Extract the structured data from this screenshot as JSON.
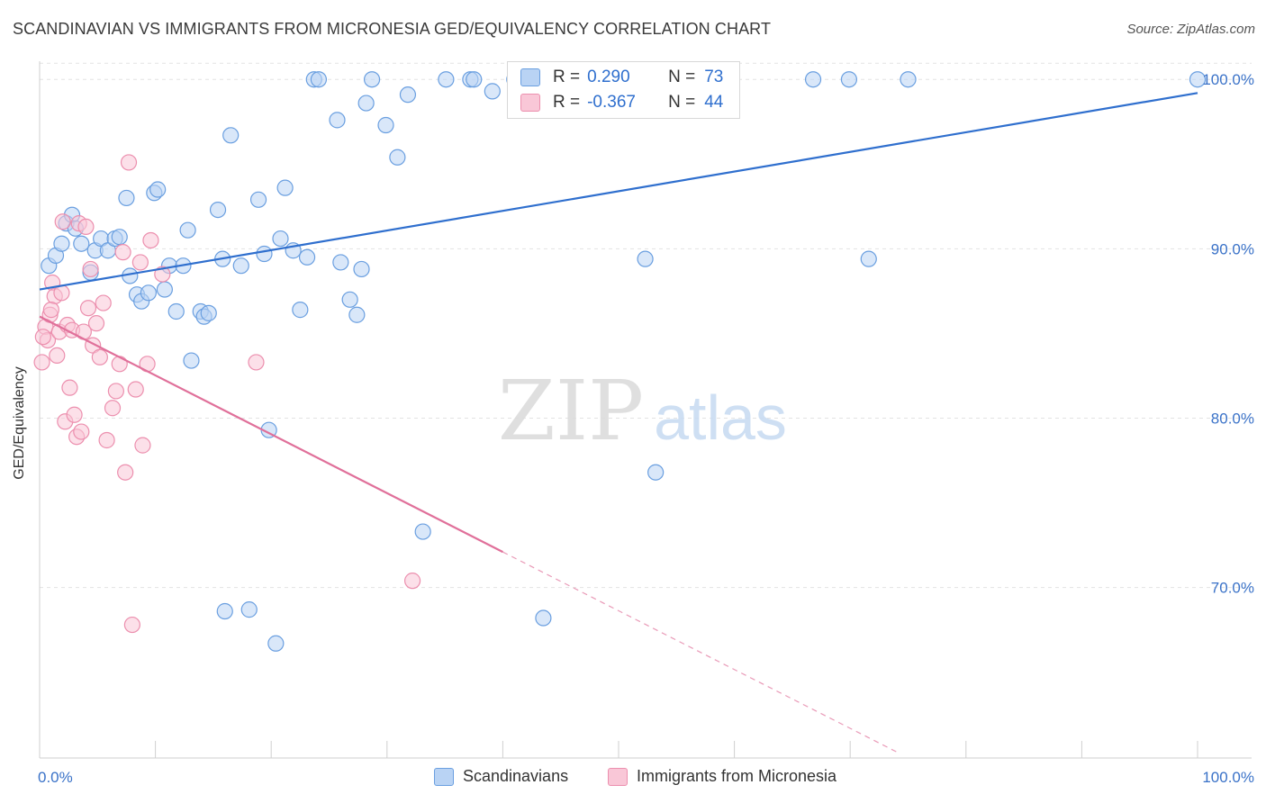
{
  "title": "SCANDINAVIAN VS IMMIGRANTS FROM MICRONESIA GED/EQUIVALENCY CORRELATION CHART",
  "source": "Source: ZipAtlas.com",
  "watermark": {
    "zip": "ZIP",
    "atlas": "atlas"
  },
  "legend": {
    "r_label": "R =",
    "n_label": "N =",
    "rows": [
      {
        "r": "0.290",
        "n": "73"
      },
      {
        "r": "-0.367",
        "n": "44"
      }
    ]
  },
  "bottom_legend": [
    "Scandinavians",
    "Immigrants from Micronesia"
  ],
  "colors": {
    "blue_fill": "#b9d3f4",
    "blue_stroke": "#6a9fe0",
    "blue_line": "#2f6fce",
    "pink_fill": "#f9c7d7",
    "pink_stroke": "#ec8fae",
    "pink_line": "#e0709a",
    "tick_label": "#3a72c8",
    "grid": "#e3e3e3"
  },
  "chart_data": {
    "type": "scatter",
    "title": "SCANDINAVIAN VS IMMIGRANTS FROM MICRONESIA GED/EQUIVALENCY CORRELATION CHART",
    "xlabel": "",
    "ylabel": "GED/Equivalency",
    "xlim": [
      0,
      100
    ],
    "ylim": [
      61,
      101.5
    ],
    "x_tick_labels": [
      "0.0%",
      "100.0%"
    ],
    "y_ticks": [
      70,
      80,
      90,
      100
    ],
    "y_tick_labels": [
      "70.0%",
      "80.0%",
      "90.0%",
      "100.0%"
    ],
    "grid": true,
    "legend_position": "top-center",
    "series": [
      {
        "name": "Scandinavians",
        "r": 0.29,
        "n": 73,
        "trend": {
          "x": [
            0,
            100
          ],
          "y": [
            87.6,
            99.2
          ]
        },
        "points": [
          [
            0.8,
            89.0
          ],
          [
            1.4,
            89.6
          ],
          [
            1.9,
            90.3
          ],
          [
            2.3,
            91.5
          ],
          [
            2.8,
            92.0
          ],
          [
            3.1,
            91.2
          ],
          [
            3.6,
            90.3
          ],
          [
            4.4,
            88.6
          ],
          [
            4.8,
            89.9
          ],
          [
            5.3,
            90.6
          ],
          [
            5.9,
            89.9
          ],
          [
            6.5,
            90.6
          ],
          [
            6.9,
            90.7
          ],
          [
            7.5,
            93.0
          ],
          [
            7.8,
            88.4
          ],
          [
            8.4,
            87.3
          ],
          [
            8.8,
            86.9
          ],
          [
            9.4,
            87.4
          ],
          [
            9.9,
            93.3
          ],
          [
            10.2,
            93.5
          ],
          [
            10.8,
            87.6
          ],
          [
            11.2,
            89.0
          ],
          [
            11.8,
            86.3
          ],
          [
            12.4,
            89.0
          ],
          [
            12.8,
            91.1
          ],
          [
            13.1,
            83.4
          ],
          [
            13.9,
            86.3
          ],
          [
            14.2,
            86.0
          ],
          [
            14.6,
            86.2
          ],
          [
            15.4,
            92.3
          ],
          [
            15.8,
            89.4
          ],
          [
            16.5,
            96.7
          ],
          [
            17.4,
            89.0
          ],
          [
            18.9,
            92.9
          ],
          [
            19.4,
            89.7
          ],
          [
            19.8,
            79.3
          ],
          [
            20.4,
            66.7
          ],
          [
            20.8,
            90.6
          ],
          [
            21.2,
            93.6
          ],
          [
            21.9,
            89.9
          ],
          [
            22.5,
            86.4
          ],
          [
            23.1,
            89.5
          ],
          [
            23.7,
            100.0
          ],
          [
            24.1,
            100.0
          ],
          [
            25.7,
            97.6
          ],
          [
            26.0,
            89.2
          ],
          [
            26.8,
            87.0
          ],
          [
            27.4,
            86.1
          ],
          [
            27.8,
            88.8
          ],
          [
            28.2,
            98.6
          ],
          [
            28.7,
            100.0
          ],
          [
            29.9,
            97.3
          ],
          [
            30.9,
            95.4
          ],
          [
            31.8,
            99.1
          ],
          [
            35.1,
            100.0
          ],
          [
            37.2,
            100.0
          ],
          [
            37.5,
            100.0
          ],
          [
            39.1,
            99.3
          ],
          [
            41.0,
            100.0
          ],
          [
            43.5,
            68.2
          ],
          [
            47.5,
            100.0
          ],
          [
            51.2,
            100.0
          ],
          [
            51.8,
            100.0
          ],
          [
            52.3,
            89.4
          ],
          [
            53.2,
            76.8
          ],
          [
            66.8,
            100.0
          ],
          [
            69.9,
            100.0
          ],
          [
            71.6,
            89.4
          ],
          [
            75.0,
            100.0
          ],
          [
            100.0,
            100.0
          ],
          [
            18.1,
            68.7
          ],
          [
            16.0,
            68.6
          ],
          [
            33.1,
            73.3
          ]
        ]
      },
      {
        "name": "Immigrants from Micronesia",
        "r": -0.367,
        "n": 44,
        "trend": {
          "x": [
            0,
            40
          ],
          "y": [
            86.0,
            72.1
          ]
        },
        "trend_extension": {
          "x": [
            40,
            74
          ],
          "y": [
            72.1,
            60.3
          ]
        },
        "points": [
          [
            0.2,
            83.3
          ],
          [
            0.5,
            85.4
          ],
          [
            0.7,
            84.6
          ],
          [
            0.9,
            86.1
          ],
          [
            1.1,
            88.0
          ],
          [
            1.3,
            87.2
          ],
          [
            1.5,
            83.7
          ],
          [
            1.7,
            85.1
          ],
          [
            1.9,
            87.4
          ],
          [
            2.0,
            91.6
          ],
          [
            2.2,
            79.8
          ],
          [
            2.4,
            85.5
          ],
          [
            2.6,
            81.8
          ],
          [
            2.8,
            85.2
          ],
          [
            3.0,
            80.2
          ],
          [
            3.2,
            78.9
          ],
          [
            3.4,
            91.5
          ],
          [
            3.6,
            79.2
          ],
          [
            3.8,
            85.1
          ],
          [
            4.0,
            91.3
          ],
          [
            4.2,
            86.5
          ],
          [
            4.4,
            88.8
          ],
          [
            4.6,
            84.3
          ],
          [
            4.9,
            85.6
          ],
          [
            5.2,
            83.6
          ],
          [
            5.5,
            86.8
          ],
          [
            5.8,
            78.7
          ],
          [
            6.3,
            80.6
          ],
          [
            6.6,
            81.6
          ],
          [
            6.9,
            83.2
          ],
          [
            7.2,
            89.8
          ],
          [
            7.4,
            76.8
          ],
          [
            7.7,
            95.1
          ],
          [
            8.0,
            67.8
          ],
          [
            8.3,
            81.7
          ],
          [
            8.7,
            89.2
          ],
          [
            8.9,
            78.4
          ],
          [
            9.3,
            83.2
          ],
          [
            9.6,
            90.5
          ],
          [
            10.6,
            88.5
          ],
          [
            18.7,
            83.3
          ],
          [
            32.2,
            70.4
          ],
          [
            0.3,
            84.8
          ],
          [
            1.0,
            86.4
          ]
        ]
      }
    ]
  }
}
